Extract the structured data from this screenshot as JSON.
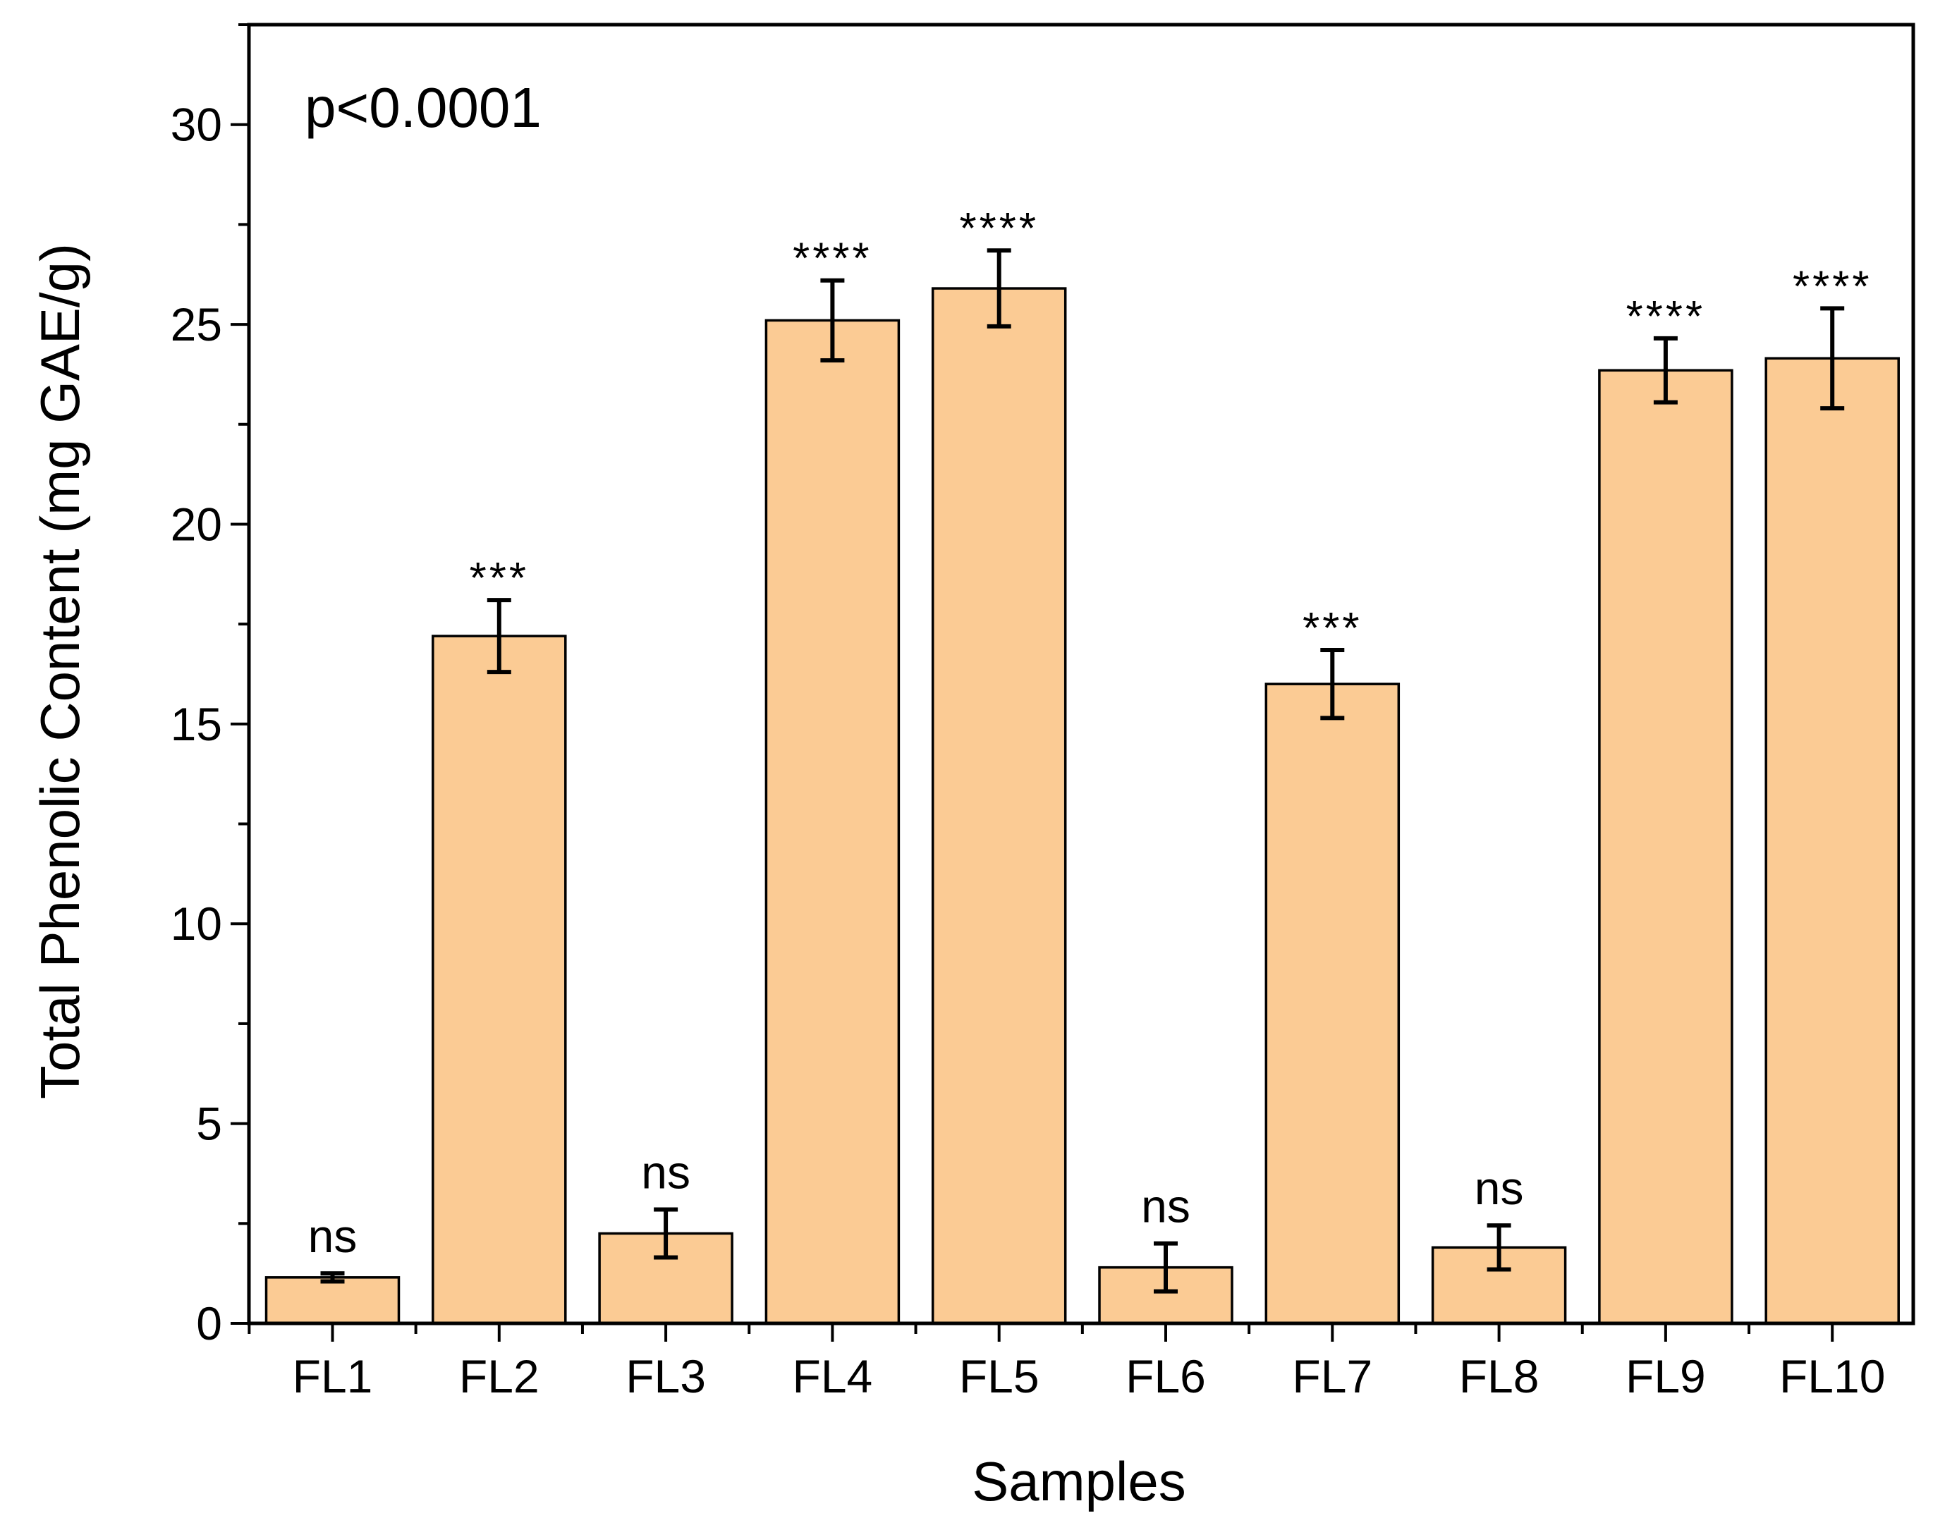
{
  "chart_data": {
    "type": "bar",
    "title": "",
    "xlabel": "Samples",
    "ylabel": "Total Phenolic Content (mg GAE/g)",
    "annotation": "p<0.0001",
    "ylim": [
      0,
      32.5
    ],
    "yticks": [
      0,
      5,
      10,
      15,
      20,
      25,
      30
    ],
    "grid": false,
    "categories": [
      "FL1",
      "FL2",
      "FL3",
      "FL4",
      "FL5",
      "FL6",
      "FL7",
      "FL8",
      "FL9",
      "FL10"
    ],
    "values": [
      1.15,
      17.2,
      2.25,
      25.1,
      25.9,
      1.4,
      16.0,
      1.9,
      23.85,
      24.15
    ],
    "errors": [
      0.1,
      0.9,
      0.6,
      1.0,
      0.95,
      0.6,
      0.85,
      0.55,
      0.8,
      1.25
    ],
    "significance": [
      "ns",
      "***",
      "ns",
      "****",
      "****",
      "ns",
      "***",
      "ns",
      "****",
      "****"
    ],
    "bar_color": "#FBCB94",
    "edge_color": "#000000"
  }
}
